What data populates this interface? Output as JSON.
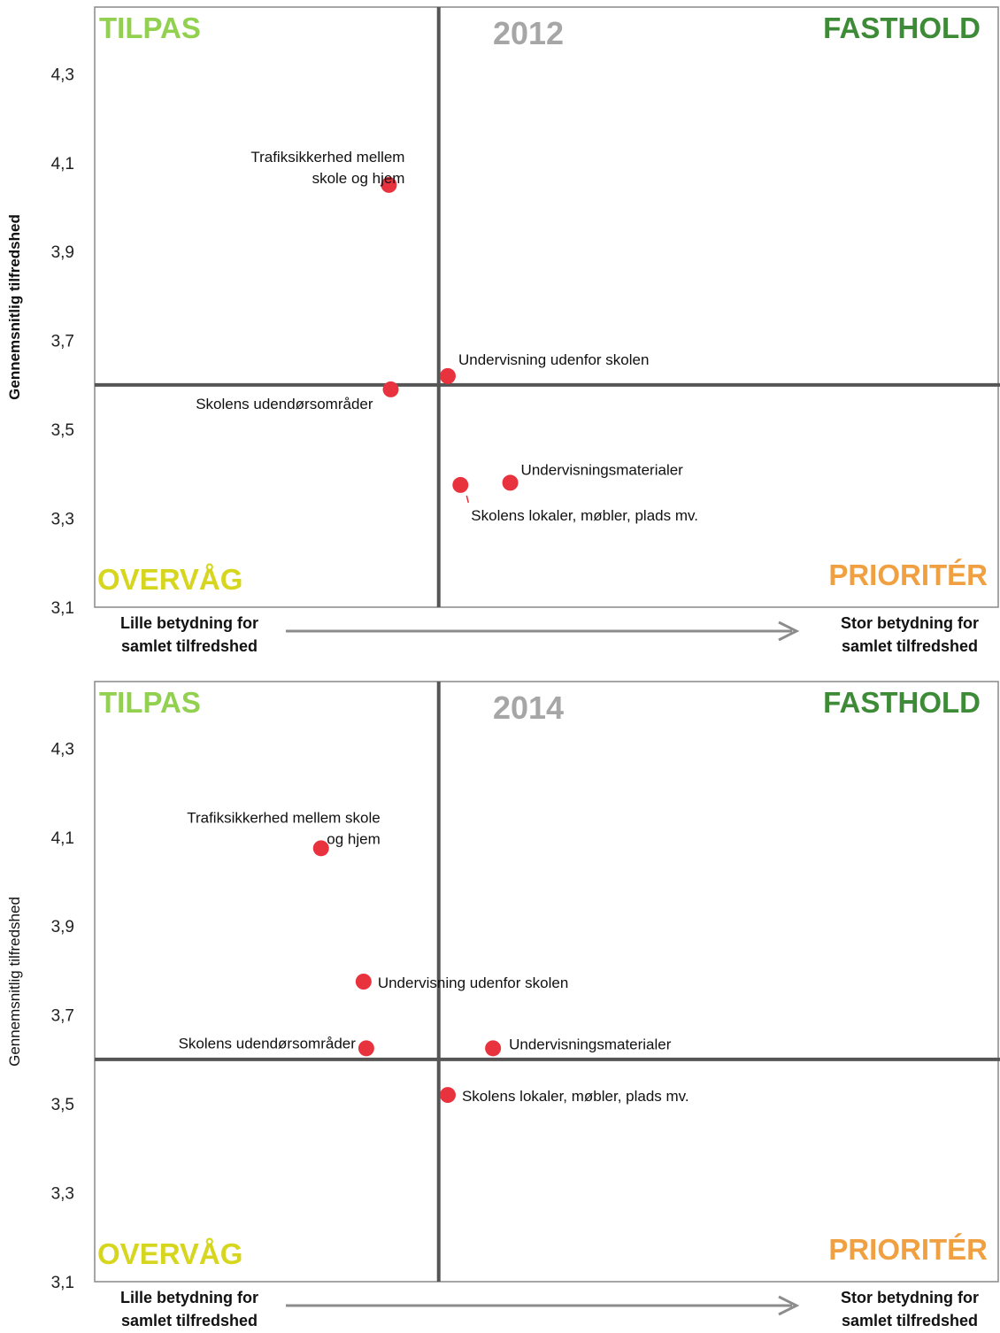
{
  "quadrant_labels": {
    "top_left": "TILPAS",
    "top_right": "FASTHOLD",
    "bottom_left": "OVERVÅG",
    "bottom_right": "PRIORITÉR"
  },
  "colors": {
    "tilpas": "#92d050",
    "fasthold": "#3d8b37",
    "overvaag": "#d6d61e",
    "prioriter": "#f0a040",
    "point": "#e8333f",
    "divider": "#555555",
    "frame": "#888888",
    "arrow": "#8c8c8c"
  },
  "x_axis_notes": {
    "left": [
      "Lille betydning for",
      "samlet tilfredshed"
    ],
    "right": [
      "Stor betydning for",
      "samlet tilfredshed"
    ]
  },
  "chart_data": [
    {
      "type": "scatter",
      "title": "2012",
      "ylabel": "Gennemsnitlig tilfredshed",
      "ylabel_bold": true,
      "ylim": [
        3.1,
        4.45
      ],
      "yticks": [
        "3,1",
        "3,3",
        "3,5",
        "3,7",
        "3,9",
        "4,1",
        "4,3"
      ],
      "xlim": [
        0,
        1
      ],
      "x_divider": 0.38,
      "y_divider": 3.6,
      "points": [
        {
          "label": "Trafiksikkerhed mellem skole og hjem",
          "label_lines": [
            "Trafiksikkerhed mellem",
            "skole og hjem"
          ],
          "x": 0.325,
          "y": 4.05
        },
        {
          "label": "Undervisning udenfor skolen",
          "label_lines": [
            "Undervisning udenfor skolen"
          ],
          "x": 0.39,
          "y": 3.62
        },
        {
          "label": "Skolens udendørsområder",
          "label_lines": [
            "Skolens udendørsområder"
          ],
          "x": 0.327,
          "y": 3.59
        },
        {
          "label": "Undervisningsmaterialer",
          "label_lines": [
            "Undervisningsmaterialer"
          ],
          "x": 0.459,
          "y": 3.38
        },
        {
          "label": "Skolens lokaler, møbler, plads mv.",
          "label_lines": [
            "Skolens lokaler, møbler, plads mv."
          ],
          "x": 0.404,
          "y": 3.375
        }
      ]
    },
    {
      "type": "scatter",
      "title": "2014",
      "ylabel": "Gennemsnitlig tilfredshed",
      "ylabel_bold": false,
      "ylim": [
        3.1,
        4.45
      ],
      "yticks": [
        "3,1",
        "3,3",
        "3,5",
        "3,7",
        "3,9",
        "4,1",
        "4,3"
      ],
      "xlim": [
        0,
        1
      ],
      "x_divider": 0.38,
      "y_divider": 3.6,
      "points": [
        {
          "label": "Trafiksikkerhed mellem skole og hjem",
          "label_lines": [
            "Trafiksikkerhed mellem skole",
            "og hjem"
          ],
          "x": 0.25,
          "y": 4.075
        },
        {
          "label": "Undervisning udenfor skolen",
          "label_lines": [
            "Undervisning udenfor skolen"
          ],
          "x": 0.297,
          "y": 3.775
        },
        {
          "label": "Skolens udendørsområder",
          "label_lines": [
            "Skolens udendørsområder"
          ],
          "x": 0.3,
          "y": 3.625
        },
        {
          "label": "Undervisningsmaterialer",
          "label_lines": [
            "Undervisningsmaterialer"
          ],
          "x": 0.44,
          "y": 3.625
        },
        {
          "label": "Skolens lokaler, møbler, plads mv.",
          "label_lines": [
            "Skolens lokaler, møbler, plads mv."
          ],
          "x": 0.39,
          "y": 3.52
        }
      ]
    }
  ]
}
